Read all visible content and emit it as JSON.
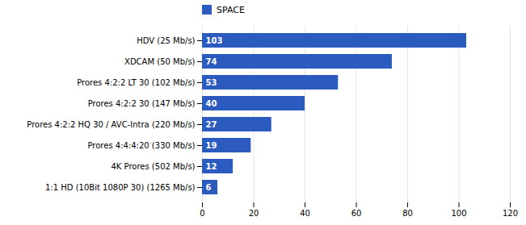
{
  "chart_data": {
    "type": "bar",
    "orientation": "horizontal",
    "categories": [
      "HDV (25 Mb/s)",
      "XDCAM (50 Mb/s)",
      "Prores 4:2:2 LT 30 (102 Mb/s)",
      "Prores 4:2:2 30 (147 Mb/s)",
      "Prores 4:2:2 HQ 30 / AVC-Intra (220 Mb/s)",
      "Prores 4:4:4:20 (330 Mb/s)",
      "4K Prores (502 Mb/s)",
      "1:1 HD (10Bit 1080P 30) (1265 Mb/s)"
    ],
    "series": [
      {
        "name": "SPACE",
        "color": "#2b5bbf",
        "values": [
          103,
          74,
          53,
          40,
          27,
          19,
          12,
          6
        ]
      }
    ],
    "xlim": [
      0,
      120
    ],
    "xticks": [
      0,
      20,
      40,
      60,
      80,
      100,
      120
    ],
    "grid": true,
    "legend": "upper left",
    "data_labels": true
  }
}
